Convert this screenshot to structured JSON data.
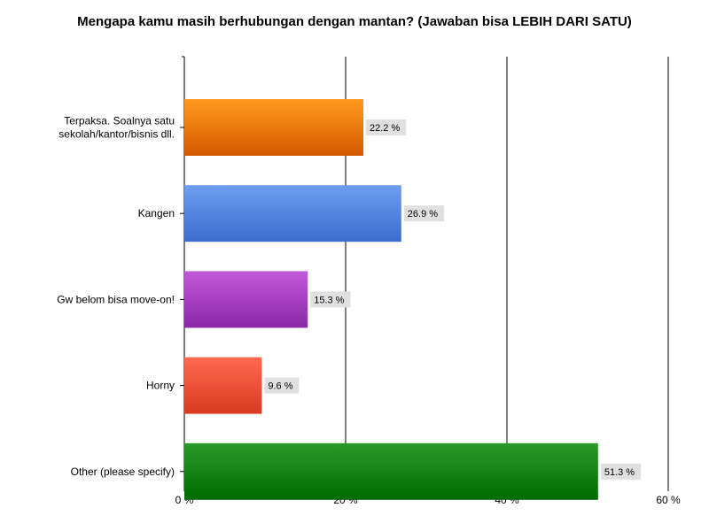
{
  "chart_data": {
    "type": "bar",
    "orientation": "horizontal",
    "title": "Mengapa kamu masih berhubungan dengan mantan? (Jawaban bisa LEBIH DARI SATU)",
    "categories": [
      [
        "Terpaksa. Soalnya satu",
        "sekolah/kantor/bisnis dll."
      ],
      [
        "Kangen"
      ],
      [
        "Gw belom bisa move-on!"
      ],
      [
        "Horny"
      ],
      [
        "Other (please specify)"
      ]
    ],
    "values": [
      22.2,
      26.9,
      15.3,
      9.6,
      51.3
    ],
    "data_labels": [
      "22.2 %",
      "26.9 %",
      "15.3 %",
      "9.6 %",
      "51.3 %"
    ],
    "bar_colors": [
      {
        "top": "#ff9a1e",
        "bottom": "#d45a00"
      },
      {
        "top": "#6f9ef0",
        "bottom": "#3a6ccc"
      },
      {
        "top": "#c05ad8",
        "bottom": "#8a28a8"
      },
      {
        "top": "#ff6a50",
        "bottom": "#d83a22"
      },
      {
        "top": "#2a9a2a",
        "bottom": "#006a00"
      }
    ],
    "xlim": [
      0,
      60
    ],
    "xticks": [
      0,
      20,
      40,
      60
    ],
    "xtick_labels": [
      "0 %",
      "20 %",
      "40 %",
      "60 %"
    ],
    "grid": true,
    "label_bg_color": "#e0e0e0"
  }
}
